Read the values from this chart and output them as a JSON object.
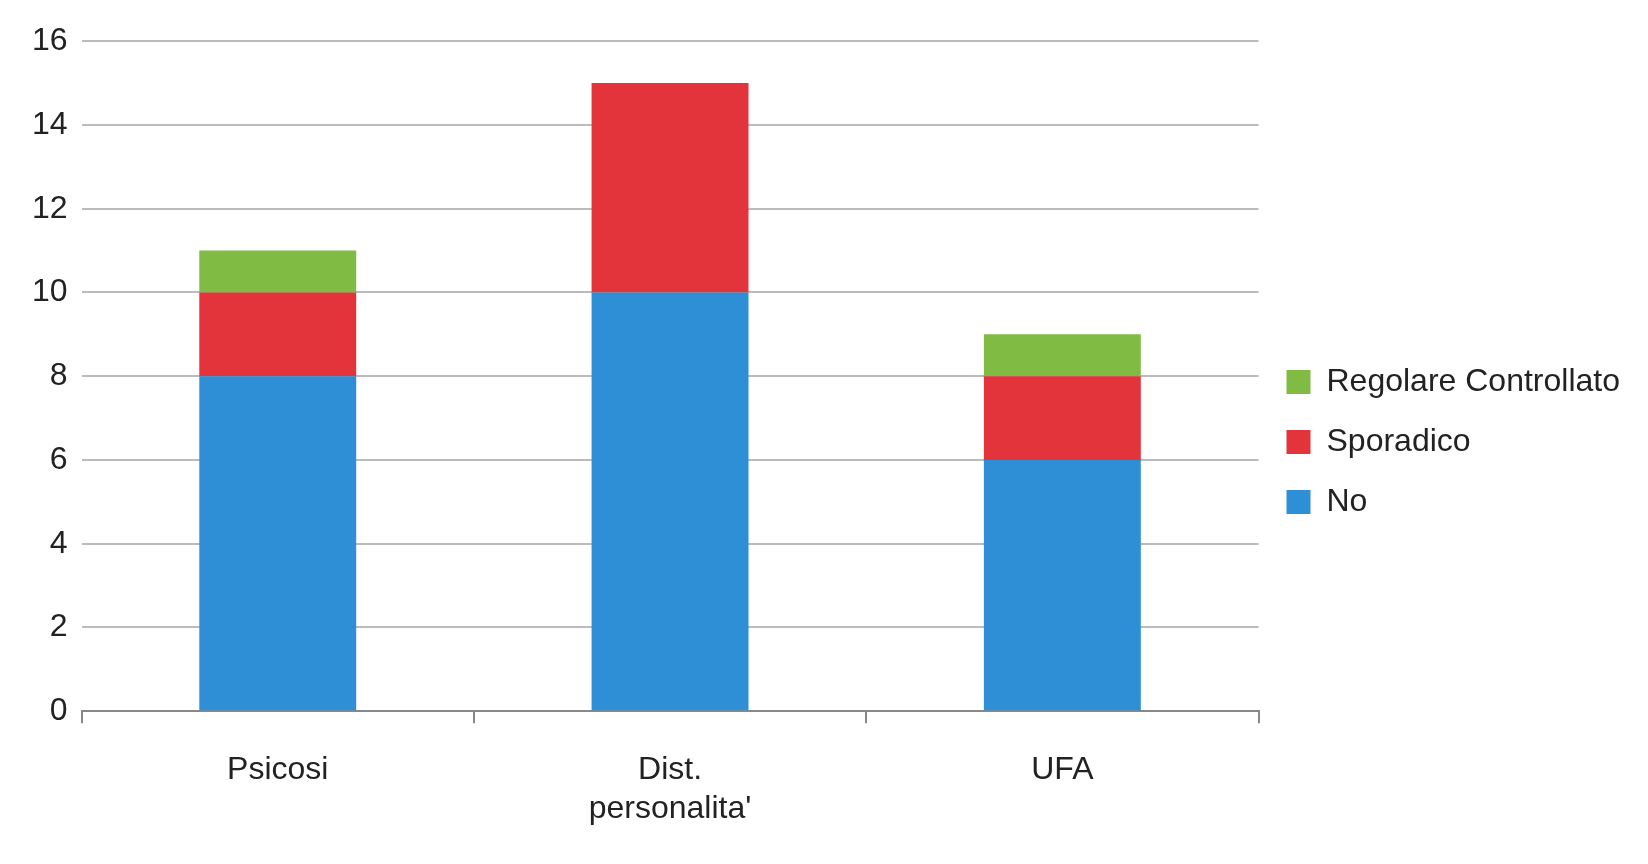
{
  "chart_data": {
    "type": "bar",
    "stacked": true,
    "categories": [
      "Psicosi",
      "Dist. personalita'",
      "UFA"
    ],
    "series": [
      {
        "name": "No",
        "color": "#2f8fd6",
        "values": [
          8,
          10,
          6
        ]
      },
      {
        "name": "Sporadico",
        "color": "#e3343c",
        "values": [
          2,
          5,
          2
        ]
      },
      {
        "name": "Regolare Controllato",
        "color": "#80bb43",
        "values": [
          1,
          0,
          1
        ]
      }
    ],
    "ylim": [
      0,
      16
    ],
    "yticks": [
      0,
      2,
      4,
      6,
      8,
      10,
      12,
      14,
      16
    ],
    "grid": "y",
    "legend": "right"
  }
}
